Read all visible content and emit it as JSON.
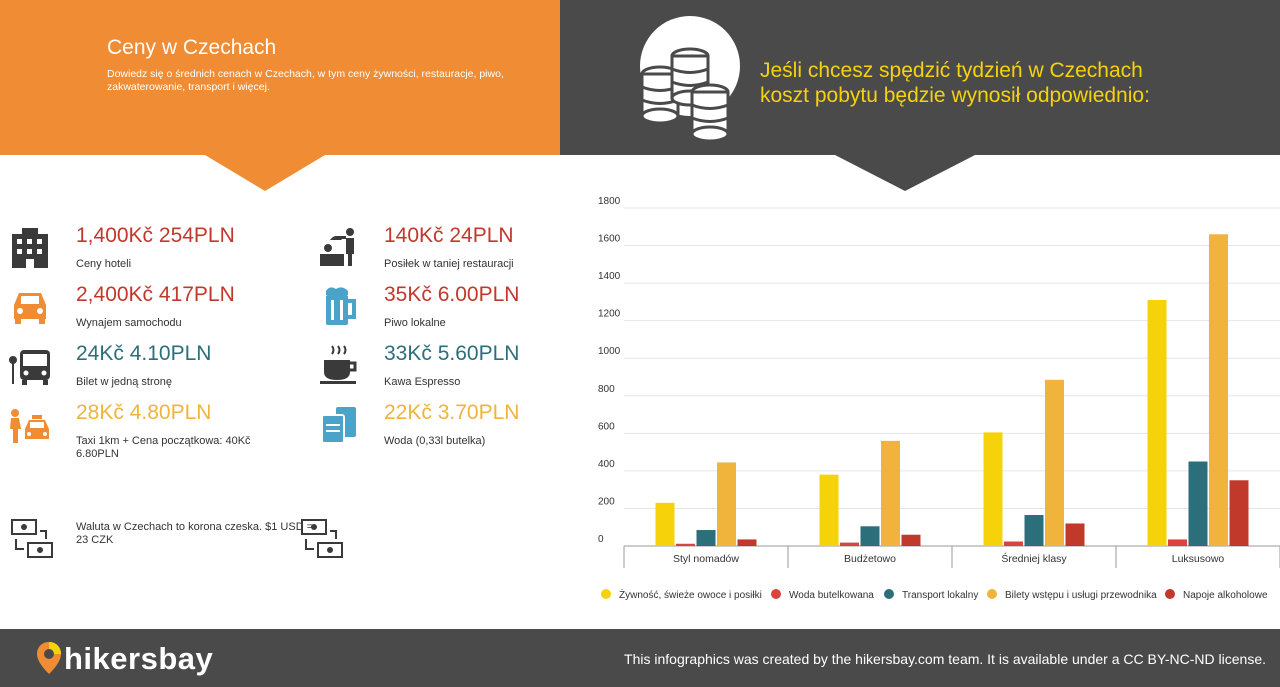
{
  "header": {
    "title": "Ceny w Czechach",
    "subtitle": "Dowiedz się o średnich cenach w Czechach, w tym ceny żywności, restauracje, piwo, zakwaterowanie, transport i więcej.",
    "headline_line1": "Jeśli chcesz spędzić tydzień w Czechach",
    "headline_line2": "koszt pobytu będzie wynosił odpowiednio:",
    "colors": {
      "orange": "#f08c33",
      "dark": "#4a4a4a",
      "yellow": "#f6d20a"
    }
  },
  "prices": [
    {
      "icon": "hotel-icon",
      "price": "1,400Kč 254PLN",
      "label": "Ceny hoteli",
      "color": "red"
    },
    {
      "icon": "car-icon",
      "price": "2,400Kč 417PLN",
      "label": "Wynajem samochodu",
      "color": "red"
    },
    {
      "icon": "bus-icon",
      "price": "24Kč 4.10PLN",
      "label": "Bilet w jedną stronę",
      "color": "teal"
    },
    {
      "icon": "taxi-icon",
      "price": "28Kč 4.80PLN",
      "label": "Taxi 1km + Cena początkowa: 40Kč 6.80PLN",
      "color": "yellow"
    },
    {
      "icon": "restaurant-icon",
      "price": "140Kč 24PLN",
      "label": "Posiłek w taniej restauracji",
      "color": "red"
    },
    {
      "icon": "beer-icon",
      "price": "35Kč 6.00PLN",
      "label": "Piwo lokalne",
      "color": "red"
    },
    {
      "icon": "coffee-icon",
      "price": "33Kč 5.60PLN",
      "label": "Kawa Espresso",
      "color": "teal"
    },
    {
      "icon": "water-icon",
      "price": "22Kč 3.70PLN",
      "label": "Woda (0,33l butelka)",
      "color": "yellow"
    }
  ],
  "currency": {
    "text": "Waluta w Czechach to korona czeska. $1 USD = 23 CZK"
  },
  "chart_data": {
    "type": "bar",
    "categories": [
      "Styl nomadów",
      "Budżetowo",
      "Średniej klasy",
      "Luksusowo"
    ],
    "ylim": [
      0,
      1800
    ],
    "yticks": [
      0,
      200,
      400,
      600,
      800,
      1000,
      1200,
      1400,
      1600,
      1800
    ],
    "grid": true,
    "legend_position": "bottom",
    "series": [
      {
        "name": "Żywność, świeże owoce i posiłki",
        "color": "#f6d20a",
        "values": [
          230,
          380,
          605,
          1310
        ]
      },
      {
        "name": "Woda butelkowana",
        "color": "#d9453c",
        "values": [
          12,
          18,
          24,
          35
        ]
      },
      {
        "name": "Transport lokalny",
        "color": "#2c6e7a",
        "values": [
          85,
          105,
          165,
          450
        ]
      },
      {
        "name": "Bilety wstępu i usługi przewodnika",
        "color": "#f0b43c",
        "values": [
          445,
          560,
          885,
          1660
        ]
      },
      {
        "name": "Napoje alkoholowe",
        "color": "#c0392b",
        "values": [
          35,
          60,
          120,
          350
        ]
      }
    ]
  },
  "footer": {
    "brand": "hikersbay",
    "license": "This infographics was created by the hikersbay.com team. It is available under a CC BY-NC-ND license."
  }
}
